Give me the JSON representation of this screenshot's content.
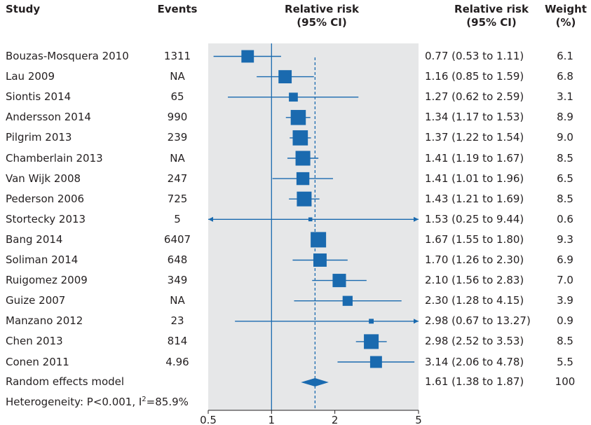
{
  "headers": {
    "study": "Study",
    "events": "Events",
    "rr_line1": "Relative risk",
    "rr_line2": "(95% CI)",
    "rr_text_line1": "Relative risk",
    "rr_text_line2": "(95% CI)",
    "weight_line1": "Weight",
    "weight_line2": "(%)"
  },
  "studies": [
    {
      "study": "Bouzas-Mosquera 2010",
      "events": "1311",
      "rr": 0.77,
      "lo": 0.53,
      "hi": 1.11,
      "ci_text": "0.77 (0.53 to 1.11)",
      "weight": "6.1"
    },
    {
      "study": "Lau 2009",
      "events": "NA",
      "rr": 1.16,
      "lo": 0.85,
      "hi": 1.59,
      "ci_text": "1.16 (0.85 to 1.59)",
      "weight": "6.8"
    },
    {
      "study": "Siontis 2014",
      "events": "65",
      "rr": 1.27,
      "lo": 0.62,
      "hi": 2.59,
      "ci_text": "1.27 (0.62 to 2.59)",
      "weight": "3.1"
    },
    {
      "study": "Andersson 2014",
      "events": "990",
      "rr": 1.34,
      "lo": 1.17,
      "hi": 1.53,
      "ci_text": "1.34 (1.17 to 1.53)",
      "weight": "8.9"
    },
    {
      "study": "Pilgrim 2013",
      "events": "239",
      "rr": 1.37,
      "lo": 1.22,
      "hi": 1.54,
      "ci_text": "1.37 (1.22 to 1.54)",
      "weight": "9.0"
    },
    {
      "study": "Chamberlain 2013",
      "events": "NA",
      "rr": 1.41,
      "lo": 1.19,
      "hi": 1.67,
      "ci_text": "1.41 (1.19 to 1.67)",
      "weight": "8.5"
    },
    {
      "study": "Van Wijk 2008",
      "events": "247",
      "rr": 1.41,
      "lo": 1.01,
      "hi": 1.96,
      "ci_text": "1.41 (1.01 to 1.96)",
      "weight": "6.5"
    },
    {
      "study": "Pederson 2006",
      "events": "725",
      "rr": 1.43,
      "lo": 1.21,
      "hi": 1.69,
      "ci_text": "1.43 (1.21 to 1.69)",
      "weight": "8.5"
    },
    {
      "study": "Stortecky 2013",
      "events": "5",
      "rr": 1.53,
      "lo": 0.25,
      "hi": 9.44,
      "ci_text": "1.53 (0.25 to 9.44)",
      "weight": "0.6"
    },
    {
      "study": "Bang 2014",
      "events": "6407",
      "rr": 1.67,
      "lo": 1.55,
      "hi": 1.8,
      "ci_text": "1.67 (1.55 to 1.80)",
      "weight": "9.3"
    },
    {
      "study": "Soliman 2014",
      "events": "648",
      "rr": 1.7,
      "lo": 1.26,
      "hi": 2.3,
      "ci_text": "1.70 (1.26 to 2.30)",
      "weight": "6.9"
    },
    {
      "study": "Ruigomez 2009",
      "events": "349",
      "rr": 2.1,
      "lo": 1.56,
      "hi": 2.83,
      "ci_text": "2.10 (1.56 to 2.83)",
      "weight": "7.0"
    },
    {
      "study": "Guize 2007",
      "events": "NA",
      "rr": 2.3,
      "lo": 1.28,
      "hi": 4.15,
      "ci_text": "2.30 (1.28 to 4.15)",
      "weight": "3.9"
    },
    {
      "study": "Manzano 2012",
      "events": "23",
      "rr": 2.98,
      "lo": 0.67,
      "hi": 13.27,
      "ci_text": "2.98 (0.67 to 13.27)",
      "weight": "0.9"
    },
    {
      "study": "Chen 2013",
      "events": "814",
      "rr": 2.98,
      "lo": 2.52,
      "hi": 3.53,
      "ci_text": "2.98 (2.52 to 3.53)",
      "weight": "8.5"
    },
    {
      "study": "Conen 2011",
      "events": "4.96",
      "rr": 3.14,
      "lo": 2.06,
      "hi": 4.78,
      "ci_text": "3.14 (2.06 to 4.78)",
      "weight": "5.5"
    }
  ],
  "summary": {
    "label": "Random effects model",
    "rr": 1.61,
    "lo": 1.38,
    "hi": 1.87,
    "ci_text": "1.61 (1.38 to 1.87)",
    "weight": "100"
  },
  "heterogeneity": {
    "prefix": "Heterogeneity: P<0.001, I",
    "sup": "2",
    "suffix": "=85.9%"
  },
  "chart_data": {
    "type": "forest",
    "x_scale": "log",
    "xlim": [
      0.5,
      5
    ],
    "x_ticks": [
      0.5,
      1,
      2,
      5
    ],
    "x_tick_labels": [
      "0.5",
      "1",
      "2",
      "5"
    ],
    "null_line": 1,
    "summary_line": 1.61,
    "colors": {
      "marker": "#1a6aaf",
      "panel": "#e6e7e8",
      "axis": "#1a6aaf",
      "text": "#231f20"
    }
  }
}
